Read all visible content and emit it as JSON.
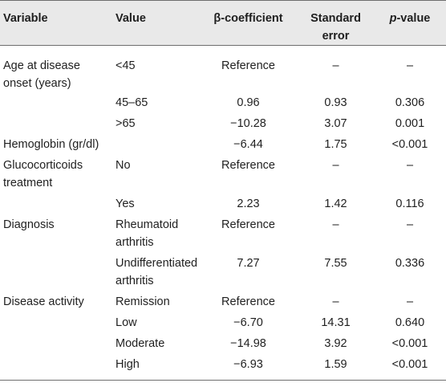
{
  "headers": {
    "variable": "Variable",
    "value": "Value",
    "beta": "β-coefficient",
    "se": "Standard error",
    "p_italic": "p",
    "p_rest": "-value"
  },
  "rows": [
    {
      "variable": "Age at disease onset (years)",
      "value": "<45",
      "beta": "Reference",
      "se": "–",
      "p": "–"
    },
    {
      "variable": "",
      "value": "45–65",
      "beta": "0.96",
      "se": "0.93",
      "p": "0.306"
    },
    {
      "variable": "",
      "value": ">65",
      "beta": "−10.28",
      "se": "3.07",
      "p": "0.001"
    },
    {
      "variable": "Hemoglobin (gr/dl)",
      "value": "",
      "beta": "−6.44",
      "se": "1.75",
      "p": "<0.001"
    },
    {
      "variable": "Glucocorticoids treatment",
      "value": "No",
      "beta": "Reference",
      "se": "–",
      "p": "–"
    },
    {
      "variable": "",
      "value": "Yes",
      "beta": "2.23",
      "se": "1.42",
      "p": "0.116"
    },
    {
      "variable": "Diagnosis",
      "value": "Rheumatoid arthritis",
      "beta": "Reference",
      "se": "–",
      "p": "–"
    },
    {
      "variable": "",
      "value": "Undifferentiated arthritis",
      "beta": "7.27",
      "se": "7.55",
      "p": "0.336"
    },
    {
      "variable": "Disease activity",
      "value": "Remission",
      "beta": "Reference",
      "se": "–",
      "p": "–"
    },
    {
      "variable": "",
      "value": "Low",
      "beta": "−6.70",
      "se": "14.31",
      "p": "0.640"
    },
    {
      "variable": "",
      "value": "Moderate",
      "beta": "−14.98",
      "se": "3.92",
      "p": "<0.001"
    },
    {
      "variable": "",
      "value": "High",
      "beta": "−6.93",
      "se": "1.59",
      "p": "<0.001"
    }
  ]
}
